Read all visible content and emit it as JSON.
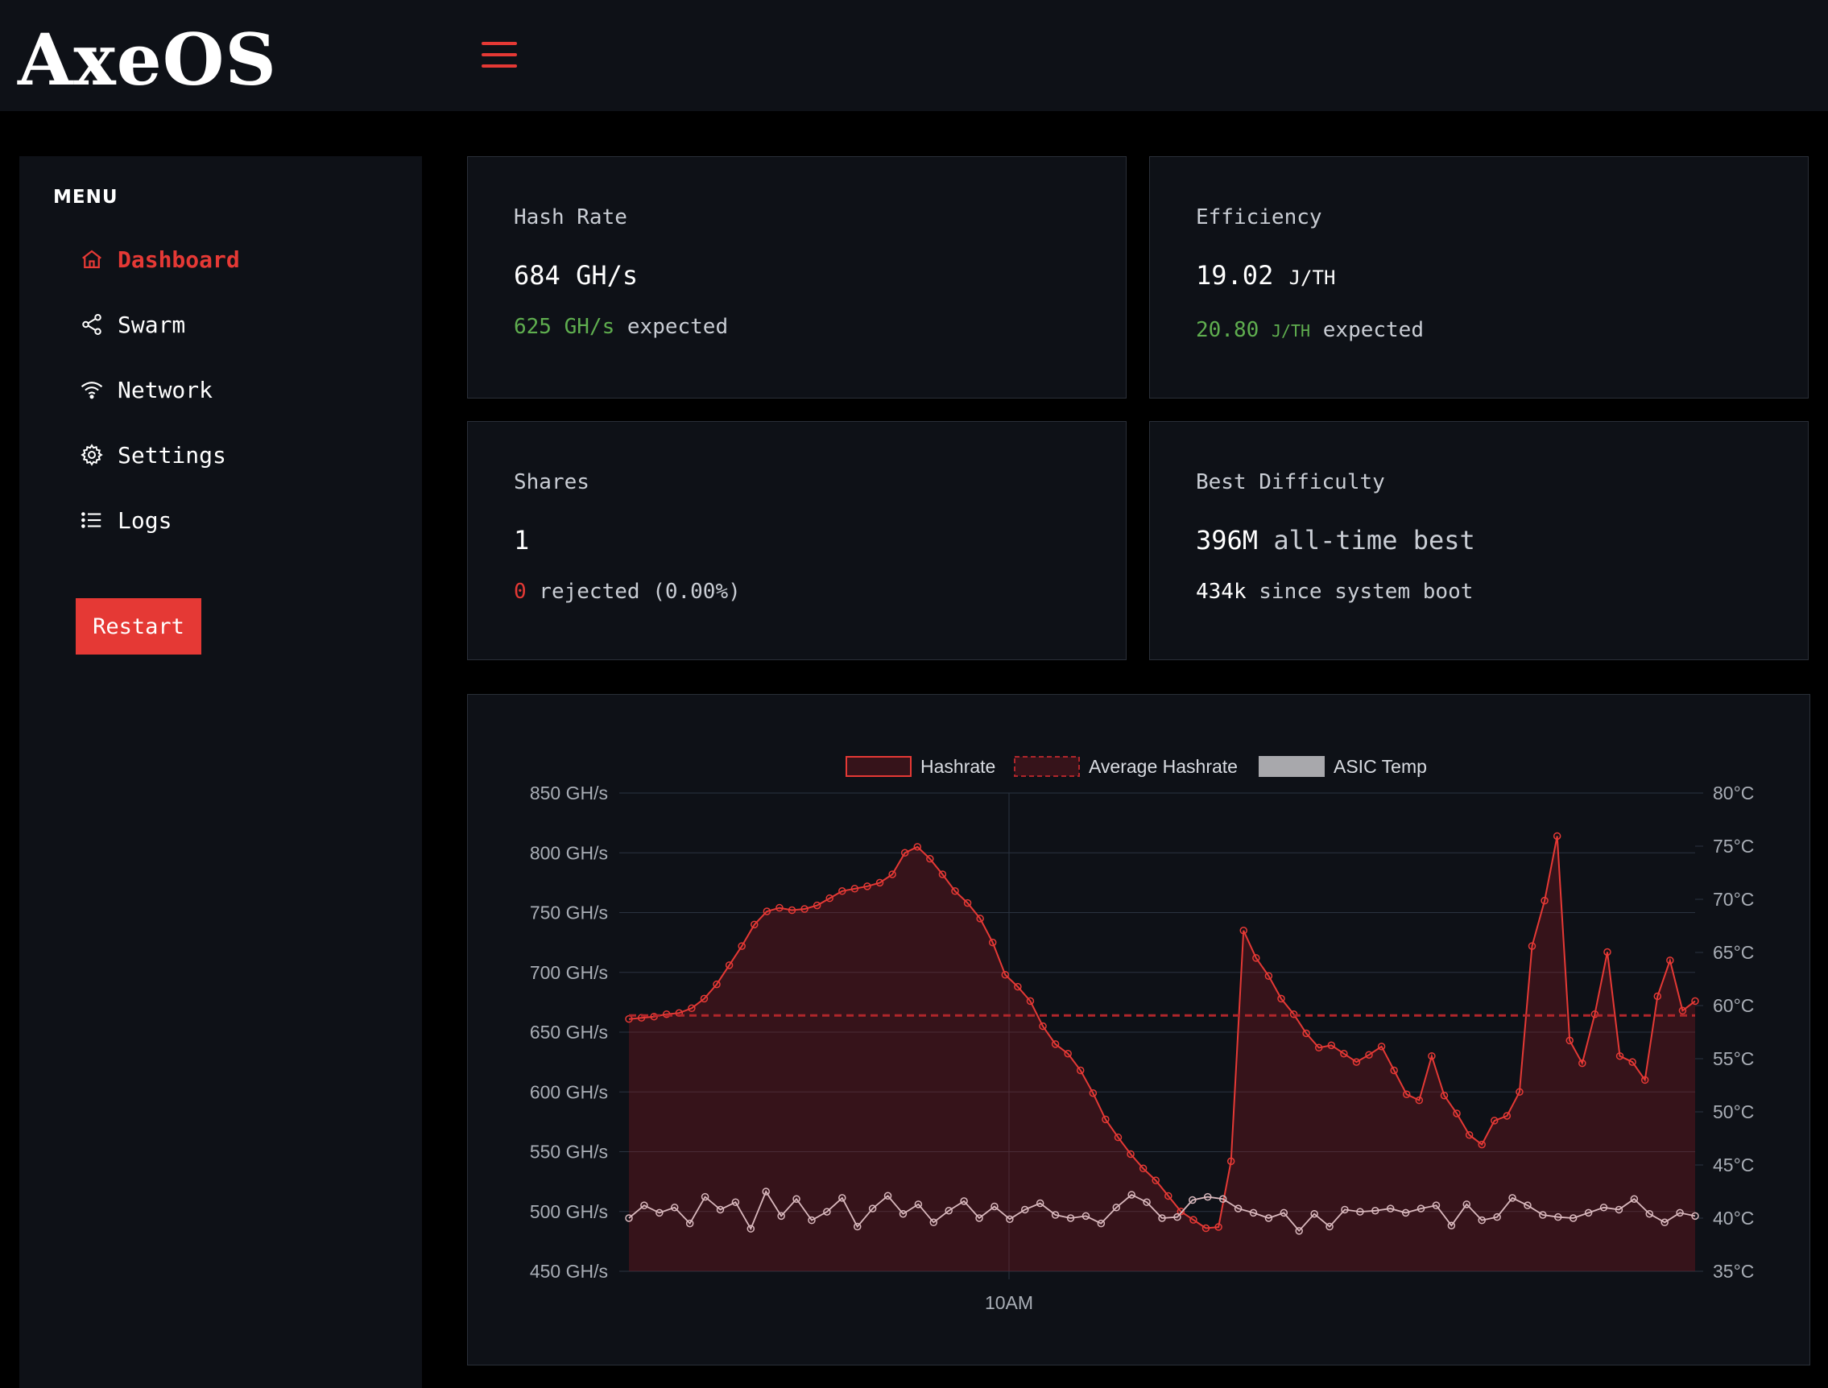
{
  "app": {
    "logo_text": "AxeOS"
  },
  "icons": {
    "menu": "hamburger-icon",
    "dashboard": "home-icon",
    "swarm": "share-nodes-icon",
    "network": "wifi-icon",
    "settings": "gear-icon",
    "logs": "list-icon"
  },
  "colors": {
    "accent": "#e53935",
    "expected_green": "#5fae4f",
    "panel_bg": "#0e1117",
    "page_bg": "#000000",
    "temp_line": "#d9b8bd"
  },
  "sidebar": {
    "title": "MENU",
    "items": [
      {
        "label": "Dashboard",
        "icon": "home-icon",
        "active": true
      },
      {
        "label": "Swarm",
        "icon": "share-nodes-icon",
        "active": false
      },
      {
        "label": "Network",
        "icon": "wifi-icon",
        "active": false
      },
      {
        "label": "Settings",
        "icon": "gear-icon",
        "active": false
      },
      {
        "label": "Logs",
        "icon": "list-icon",
        "active": false
      }
    ],
    "restart_label": "Restart"
  },
  "cards": {
    "hashrate": {
      "label": "Hash Rate",
      "value": "684 GH/s",
      "expected_value": "625 GH/s",
      "expected_suffix": " expected"
    },
    "efficiency": {
      "label": "Efficiency",
      "value": "19.02",
      "unit": "J/TH",
      "expected_value": "20.80",
      "expected_unit": "J/TH",
      "expected_suffix": " expected"
    },
    "shares": {
      "label": "Shares",
      "value": "1",
      "rejected_count": "0",
      "rejected_suffix": " rejected (0.00%)"
    },
    "best_difficulty": {
      "label": "Best Difficulty",
      "value": "396M",
      "value_suffix": " all-time best",
      "since_boot_value": "434k",
      "since_boot_suffix": " since system boot"
    }
  },
  "chart_data": {
    "type": "line",
    "legend": [
      "Hashrate",
      "Average Hashrate",
      "ASIC Temp"
    ],
    "legend_position": "top-center",
    "x_tick_labels": [
      "10AM"
    ],
    "y_left": {
      "ticks": [
        "850 GH/s",
        "800 GH/s",
        "750 GH/s",
        "700 GH/s",
        "650 GH/s",
        "600 GH/s",
        "550 GH/s",
        "500 GH/s",
        "450 GH/s"
      ],
      "range": [
        450,
        850
      ],
      "unit": "GH/s"
    },
    "y_right": {
      "ticks": [
        "80°C",
        "75°C",
        "70°C",
        "65°C",
        "60°C",
        "55°C",
        "50°C",
        "45°C",
        "40°C",
        "35°C"
      ],
      "range": [
        35,
        80
      ],
      "unit": "°C"
    },
    "grid": true,
    "average_hashrate": 664,
    "series": [
      {
        "name": "Hashrate",
        "color": "#e53935",
        "values": [
          661,
          662,
          663,
          665,
          666,
          670,
          678,
          690,
          706,
          722,
          740,
          751,
          754,
          752,
          753,
          756,
          762,
          768,
          770,
          772,
          775,
          782,
          800,
          805,
          795,
          782,
          768,
          758,
          745,
          725,
          698,
          688,
          676,
          655,
          640,
          632,
          618,
          599,
          577,
          562,
          548,
          536,
          526,
          513,
          500,
          493,
          486,
          487,
          542,
          735,
          712,
          697,
          678,
          665,
          649,
          637,
          639,
          632,
          625,
          631,
          638,
          618,
          598,
          593,
          630,
          597,
          582,
          564,
          556,
          576,
          580,
          600,
          722,
          760,
          814,
          643,
          624,
          665,
          717,
          630,
          625,
          610,
          680,
          710,
          668,
          676
        ],
        "x_index_note": "ordered samples, left to right"
      },
      {
        "name": "ASIC Temp",
        "color": "#d9b8bd",
        "values": [
          40.0,
          41.2,
          40.5,
          41.0,
          39.5,
          42.0,
          40.8,
          41.5,
          39.0,
          42.5,
          40.2,
          41.8,
          39.8,
          40.6,
          41.9,
          39.2,
          40.9,
          42.1,
          40.4,
          41.3,
          39.6,
          40.7,
          41.6,
          40.0,
          41.1,
          39.9,
          40.8,
          41.4,
          40.3,
          40.0,
          40.2,
          39.5,
          41.0,
          42.2,
          41.5,
          40.0,
          40.1,
          41.7,
          42.0,
          41.8,
          40.9,
          40.5,
          40.0,
          40.5,
          38.8,
          40.4,
          39.2,
          40.8,
          40.6,
          40.7,
          40.9,
          40.5,
          40.9,
          41.2,
          39.3,
          41.3,
          39.8,
          40.1,
          41.9,
          41.2,
          40.3,
          40.1,
          40.0,
          40.5,
          41.0,
          40.8,
          41.8,
          40.4,
          39.6,
          40.5,
          40.2
        ]
      }
    ]
  }
}
